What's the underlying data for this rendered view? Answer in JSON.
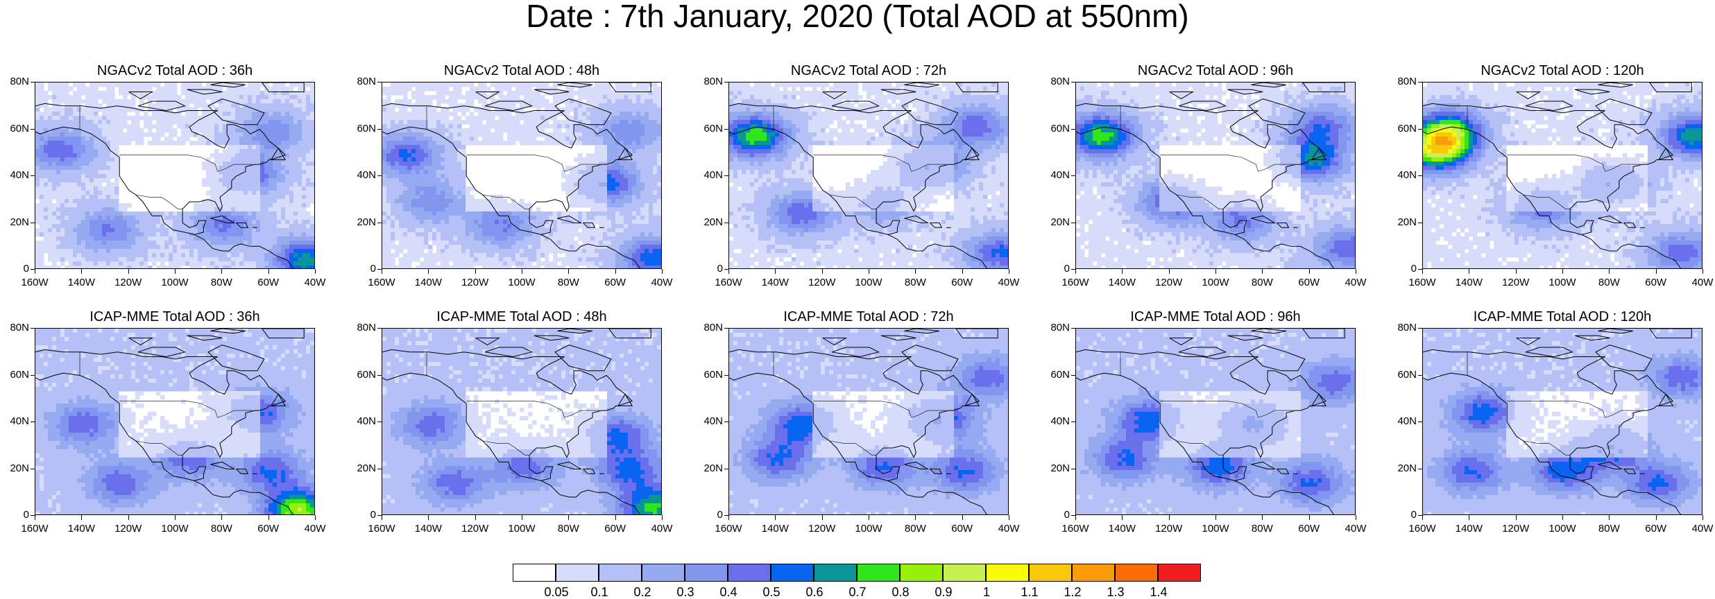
{
  "title": "Date : 7th January, 2020 (Total AOD at 550nm)",
  "panels": [
    {
      "title": "NGACv2 Total AOD : 36h"
    },
    {
      "title": "NGACv2 Total AOD : 48h"
    },
    {
      "title": "NGACv2 Total AOD : 72h"
    },
    {
      "title": "NGACv2 Total AOD : 96h"
    },
    {
      "title": "NGACv2 Total AOD : 120h"
    },
    {
      "title": "ICAP-MME Total AOD : 36h"
    },
    {
      "title": "ICAP-MME Total AOD : 48h"
    },
    {
      "title": "ICAP-MME Total AOD : 72h"
    },
    {
      "title": "ICAP-MME Total AOD : 96h"
    },
    {
      "title": "ICAP-MME Total AOD : 120h"
    }
  ],
  "lat_labels": [
    "80N",
    "60N",
    "40N",
    "20N",
    "0"
  ],
  "lon_labels": [
    "160W",
    "140W",
    "120W",
    "100W",
    "80W",
    "60W",
    "40W"
  ],
  "colorbar": {
    "labels": [
      "0.05",
      "0.1",
      "0.2",
      "0.3",
      "0.4",
      "0.5",
      "0.6",
      "0.7",
      "0.8",
      "0.9",
      "1",
      "1.1",
      "1.2",
      "1.3",
      "1.4"
    ],
    "colors": [
      "#ffffff",
      "#d6dcfa",
      "#b4c0f6",
      "#96aaf2",
      "#8296f0",
      "#6a70ec",
      "#0a64f2",
      "#0a9696",
      "#30e61c",
      "#96f00a",
      "#c8f050",
      "#fafa0a",
      "#fac80a",
      "#fa9b0a",
      "#fa6e0a",
      "#f01e1e"
    ]
  }
}
